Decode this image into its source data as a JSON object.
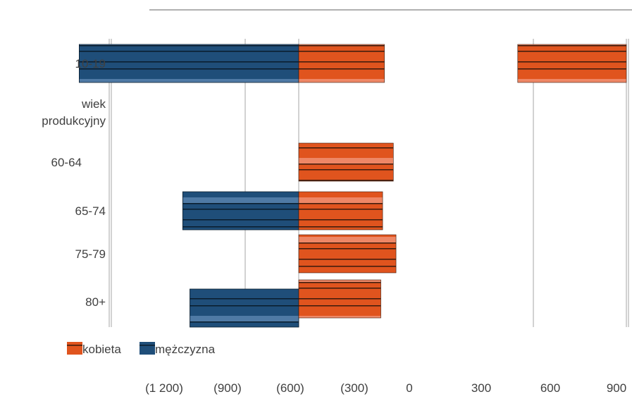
{
  "chart_data": {
    "type": "bar",
    "orientation": "horizontal",
    "categories": [
      [
        "10-19"
      ],
      [
        "wiek",
        "produkcyjny"
      ],
      [
        "60-64"
      ],
      [
        "65-74"
      ],
      [
        "75-79"
      ],
      [
        "80+"
      ]
    ],
    "series": [
      {
        "name": "kobieta",
        "color": "#e0541e",
        "values": [
          -480,
          null,
          -530,
          -470,
          -545,
          -460
        ]
      },
      {
        "name": "mężczyzna",
        "color": "#1f4e79",
        "values": [
          -1230,
          null,
          null,
          -650,
          null,
          -610
        ]
      }
    ],
    "extra_bar": {
      "category": "10-19",
      "series": "kobieta",
      "from": 560,
      "to": 900
    },
    "x_ticks": [
      "(1 200)",
      "(900)",
      "(600)",
      "(300)",
      "0",
      "300",
      "600",
      "900"
    ],
    "legend_position": "bottom-left",
    "gridlines": true
  }
}
